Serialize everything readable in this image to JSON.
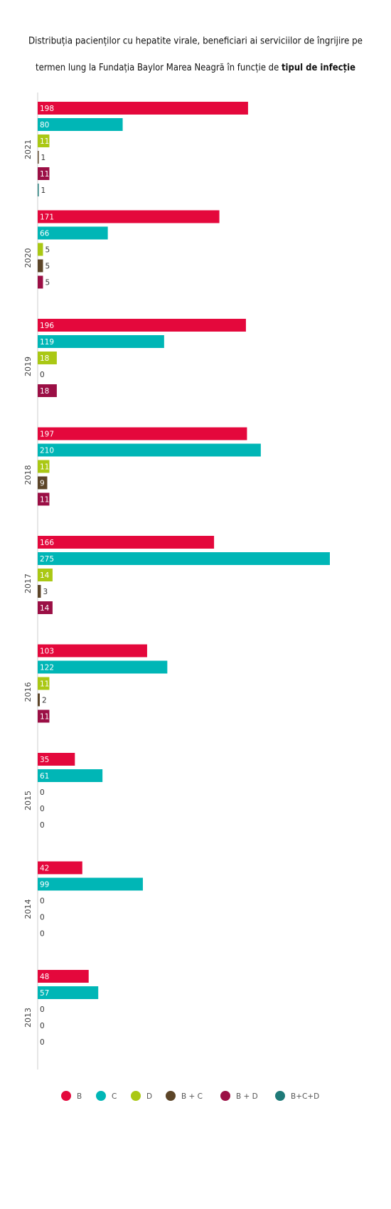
{
  "chart_data": {
    "type": "hbar",
    "title_lines": [
      "Distribuția pacienților cu hepatite virale, beneficiari ai serviciilor de îngrijire pe",
      "termen lung la Fundația Baylor Marea Neagră în funcție de"
    ],
    "title_bold": "tipul de infecție",
    "categories": [
      "2021",
      "2020",
      "2019",
      "2018",
      "2017",
      "2016",
      "2015",
      "2014",
      "2013"
    ],
    "series": [
      {
        "name": "B",
        "color": "#e4083c",
        "values": [
          198,
          171,
          196,
          197,
          166,
          103,
          35,
          42,
          48
        ]
      },
      {
        "name": "C",
        "color": "#00b6b6",
        "values": [
          80,
          66,
          119,
          210,
          275,
          122,
          61,
          99,
          57
        ]
      },
      {
        "name": "D",
        "color": "#aac814",
        "values": [
          11,
          5,
          18,
          11,
          14,
          11,
          0,
          0,
          0
        ]
      },
      {
        "name": "B + C",
        "color": "#5c4528",
        "values": [
          1,
          5,
          0,
          9,
          3,
          2,
          0,
          0,
          0
        ]
      },
      {
        "name": "B + D",
        "color": "#9b0f45",
        "values": [
          11,
          5,
          18,
          11,
          14,
          11,
          0,
          0,
          0
        ]
      },
      {
        "name": "B+C+D",
        "color": "#1f7a78",
        "values": [
          1,
          null,
          null,
          null,
          null,
          null,
          null,
          null,
          null
        ]
      }
    ],
    "xlim": [
      0,
      275
    ]
  }
}
